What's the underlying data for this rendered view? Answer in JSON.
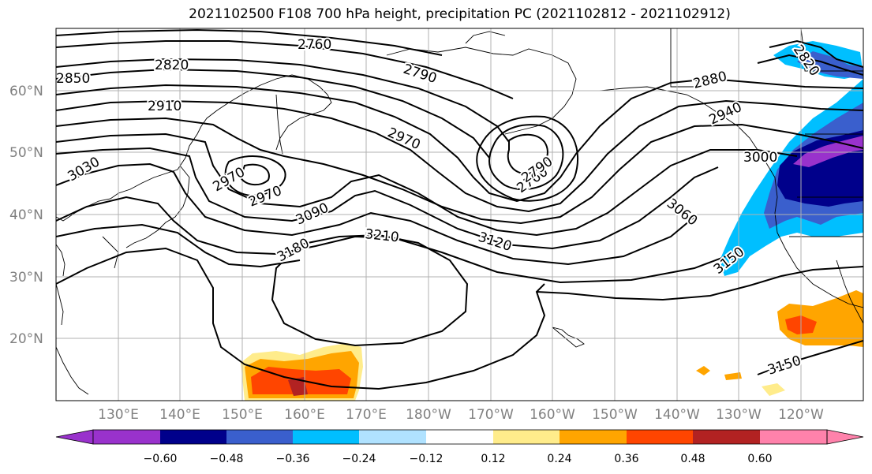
{
  "title": "2021102500 F108 700 hPa height, precipitation PC (2021102812 - 2021102912)",
  "lat_labels": [
    "60°N",
    "50°N",
    "40°N",
    "30°N",
    "20°N"
  ],
  "lon_labels": [
    "130°E",
    "140°E",
    "150°E",
    "160°E",
    "170°E",
    "180°W",
    "170°W",
    "160°W",
    "150°W",
    "140°W",
    "130°W",
    "120°W"
  ],
  "contour_labels": [
    "2760",
    "2790",
    "2820",
    "2850",
    "2880",
    "2910",
    "2940",
    "2970",
    "2970",
    "2970",
    "3000",
    "3030",
    "3060",
    "3090",
    "3120",
    "3150",
    "3150",
    "3180",
    "3210",
    "2760",
    "2790",
    "2820"
  ],
  "colorbar": {
    "ticks": [
      "−0.60",
      "−0.48",
      "−0.36",
      "−0.24",
      "−0.12",
      "0.12",
      "0.24",
      "0.36",
      "0.48",
      "0.60"
    ],
    "colors": [
      "#9932cc",
      "#00008b",
      "#3a5fcd",
      "#00bfff",
      "#b0e2ff",
      "#ffffff",
      "#ffec8b",
      "#ffa500",
      "#ff4500",
      "#b22222",
      "#ff82ab"
    ]
  }
}
